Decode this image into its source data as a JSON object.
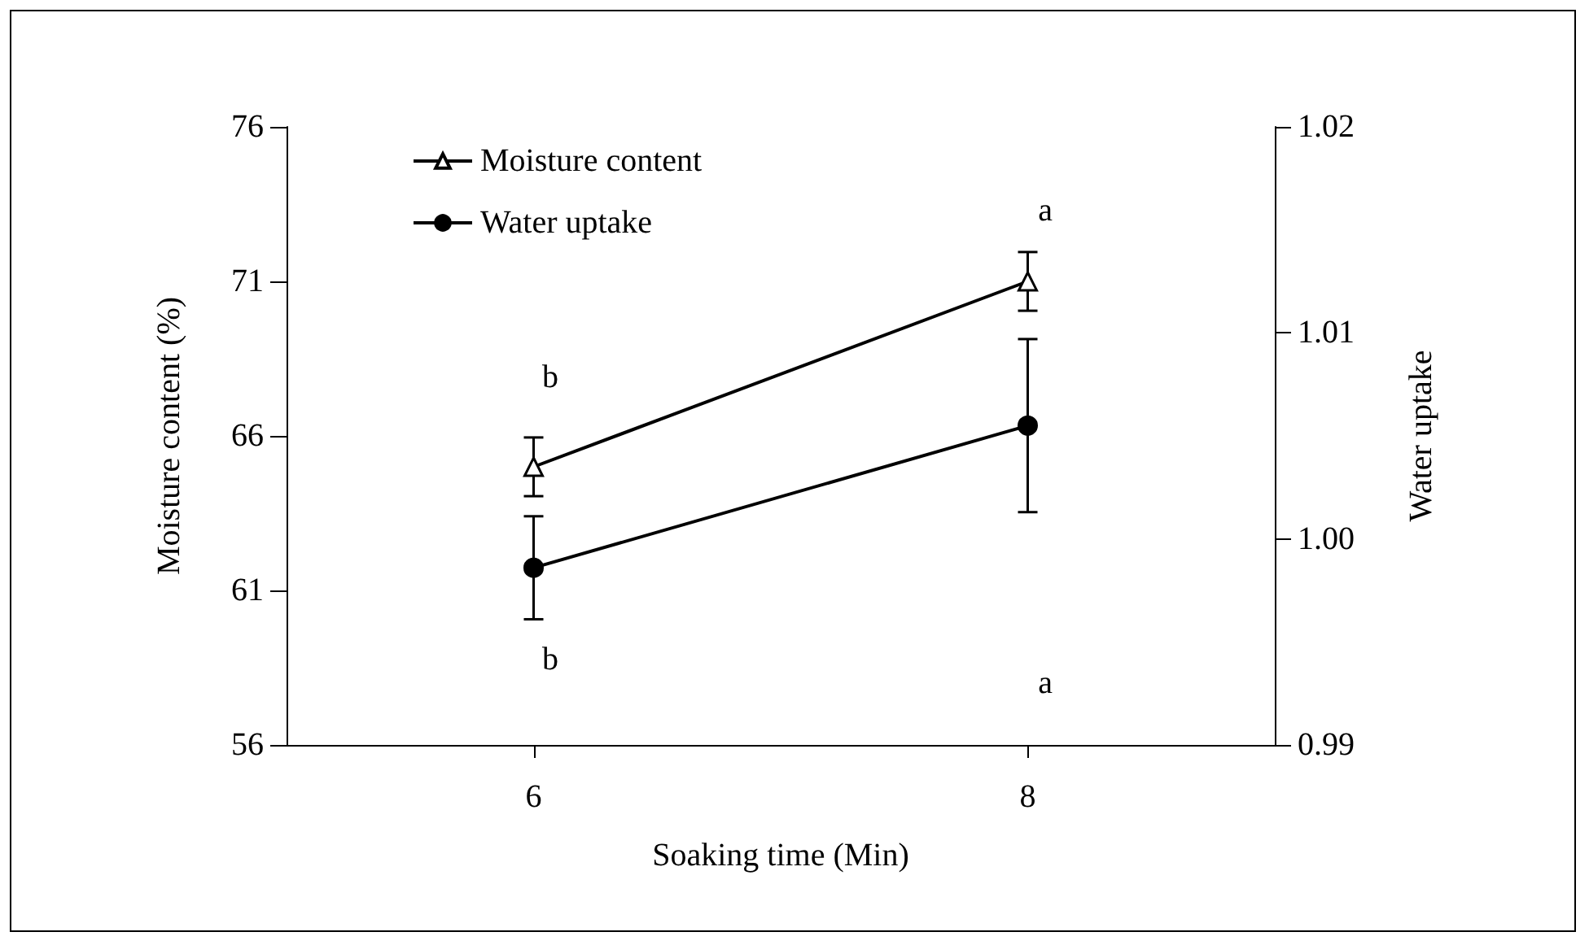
{
  "chart_data": {
    "type": "line",
    "xlabel": "Soaking time (Min)",
    "ylabel": "Moisture content (%)",
    "y2label": "Water uptake",
    "x": [
      6,
      8
    ],
    "xlim": [
      5,
      9
    ],
    "xticks": [
      6,
      8
    ],
    "ylim": [
      56,
      76
    ],
    "yticks": [
      56,
      61,
      66,
      71,
      76
    ],
    "y2lim": [
      0.99,
      1.02
    ],
    "y2ticks": [
      0.99,
      {
        "value": 1.0,
        "label": "1.00"
      },
      1.01,
      1.02
    ],
    "series": [
      {
        "name": "Moisture content",
        "color": "#000000",
        "marker": "triangle",
        "values": [
          65.0,
          71.0
        ],
        "errors": [
          0.95,
          0.95
        ]
      },
      {
        "name": "Water uptake",
        "color": "#000000",
        "marker": "circle",
        "axis": "y2",
        "values": [
          0.9986,
          1.0055
        ],
        "errors": [
          0.0025,
          0.0042
        ]
      }
    ],
    "annotations": [
      "b",
      "a",
      "b",
      "a"
    ],
    "legend": "top left",
    "grid": false,
    "line_style": "solid"
  }
}
